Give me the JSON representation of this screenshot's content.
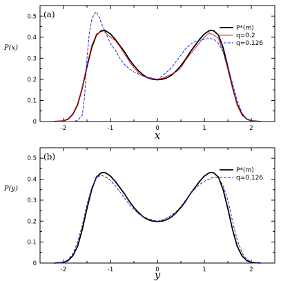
{
  "chart_data": [
    {
      "type": "line",
      "panel_label": "(a)",
      "xlabel": "x",
      "ylabel": "P(x)",
      "xlim": [
        -2.5,
        2.5
      ],
      "ylim": [
        0,
        0.55
      ],
      "x_ticks": [
        -2,
        -1,
        0,
        1,
        2
      ],
      "y_ticks": [
        0,
        0.1,
        0.2,
        0.3,
        0.4,
        0.5
      ],
      "x_tick_labels": [
        "-2",
        "-1",
        "0",
        "1",
        "2"
      ],
      "y_tick_labels": [
        "0",
        "0.1",
        "0.2",
        "0.3",
        "0.4",
        "0.5"
      ],
      "legend_position": "top-right",
      "series": [
        {
          "name": "P*(m)",
          "color": "#000000",
          "style": "solid",
          "x": [
            -2.2,
            -2.0,
            -1.9,
            -1.8,
            -1.7,
            -1.6,
            -1.5,
            -1.4,
            -1.3,
            -1.2,
            -1.15,
            -1.1,
            -1.0,
            -0.9,
            -0.8,
            -0.7,
            -0.6,
            -0.5,
            -0.4,
            -0.3,
            -0.2,
            -0.1,
            0.0,
            0.1,
            0.2,
            0.3,
            0.4,
            0.5,
            0.6,
            0.7,
            0.8,
            0.9,
            1.0,
            1.1,
            1.15,
            1.2,
            1.3,
            1.4,
            1.5,
            1.6,
            1.7,
            1.8,
            1.9,
            2.0,
            2.2
          ],
          "y": [
            0.0,
            0.003,
            0.012,
            0.035,
            0.08,
            0.16,
            0.26,
            0.35,
            0.41,
            0.43,
            0.432,
            0.43,
            0.415,
            0.39,
            0.36,
            0.33,
            0.295,
            0.265,
            0.24,
            0.22,
            0.207,
            0.2,
            0.198,
            0.2,
            0.207,
            0.22,
            0.24,
            0.265,
            0.295,
            0.33,
            0.36,
            0.39,
            0.415,
            0.43,
            0.432,
            0.43,
            0.41,
            0.35,
            0.26,
            0.16,
            0.08,
            0.035,
            0.012,
            0.003,
            0.0
          ]
        },
        {
          "name": "q=0.2",
          "color": "#e8231c",
          "style": "solid",
          "x": [
            -2.2,
            -2.0,
            -1.9,
            -1.8,
            -1.7,
            -1.6,
            -1.5,
            -1.4,
            -1.3,
            -1.2,
            -1.15,
            -1.1,
            -1.0,
            -0.9,
            -0.8,
            -0.7,
            -0.6,
            -0.5,
            -0.4,
            -0.3,
            -0.2,
            -0.1,
            0.0,
            0.1,
            0.2,
            0.3,
            0.4,
            0.5,
            0.6,
            0.7,
            0.8,
            0.9,
            1.0,
            1.1,
            1.15,
            1.2,
            1.3,
            1.4,
            1.5,
            1.6,
            1.7,
            1.8,
            1.9,
            2.0,
            2.2
          ],
          "y": [
            0.0,
            0.004,
            0.014,
            0.038,
            0.085,
            0.165,
            0.27,
            0.36,
            0.415,
            0.425,
            0.43,
            0.42,
            0.4,
            0.385,
            0.355,
            0.32,
            0.285,
            0.255,
            0.23,
            0.215,
            0.21,
            0.205,
            0.2,
            0.205,
            0.215,
            0.225,
            0.235,
            0.255,
            0.29,
            0.32,
            0.345,
            0.375,
            0.4,
            0.42,
            0.415,
            0.41,
            0.395,
            0.33,
            0.245,
            0.155,
            0.075,
            0.03,
            0.011,
            0.003,
            0.0
          ]
        },
        {
          "name": "q=0.126",
          "color": "#1a2bd6",
          "style": "dashed",
          "x": [
            -2.2,
            -1.8,
            -1.7,
            -1.6,
            -1.55,
            -1.5,
            -1.45,
            -1.4,
            -1.35,
            -1.3,
            -1.25,
            -1.2,
            -1.1,
            -1.0,
            -0.9,
            -0.8,
            -0.7,
            -0.6,
            -0.5,
            -0.4,
            -0.3,
            -0.2,
            -0.1,
            0.0,
            0.1,
            0.2,
            0.3,
            0.4,
            0.5,
            0.6,
            0.7,
            0.8,
            0.9,
            1.0,
            1.1,
            1.2,
            1.3,
            1.4,
            1.5,
            1.6,
            1.7,
            1.8,
            1.9,
            2.0,
            2.2
          ],
          "y": [
            0.0,
            0.0,
            0.005,
            0.03,
            0.12,
            0.3,
            0.42,
            0.48,
            0.51,
            0.52,
            0.5,
            0.47,
            0.42,
            0.37,
            0.34,
            0.3,
            0.27,
            0.25,
            0.235,
            0.225,
            0.215,
            0.205,
            0.2,
            0.2,
            0.215,
            0.235,
            0.255,
            0.285,
            0.315,
            0.345,
            0.365,
            0.38,
            0.385,
            0.39,
            0.395,
            0.39,
            0.37,
            0.33,
            0.26,
            0.18,
            0.1,
            0.04,
            0.012,
            0.003,
            0.0
          ]
        }
      ]
    },
    {
      "type": "line",
      "panel_label": "(b)",
      "xlabel": "y",
      "ylabel": "P(y)",
      "xlim": [
        -2.5,
        2.5
      ],
      "ylim": [
        0,
        0.55
      ],
      "x_ticks": [
        -2,
        -1,
        0,
        1,
        2
      ],
      "y_ticks": [
        0,
        0.1,
        0.2,
        0.3,
        0.4,
        0.5
      ],
      "x_tick_labels": [
        "-2",
        "-1",
        "0",
        "1",
        "2"
      ],
      "y_tick_labels": [
        "0",
        "0.1",
        "0.2",
        "0.3",
        "0.4",
        "0.5"
      ],
      "legend_position": "top-right",
      "series": [
        {
          "name": "P*(m)",
          "color": "#000000",
          "style": "solid",
          "x": [
            -2.2,
            -2.0,
            -1.9,
            -1.8,
            -1.7,
            -1.6,
            -1.5,
            -1.4,
            -1.3,
            -1.2,
            -1.15,
            -1.1,
            -1.0,
            -0.9,
            -0.8,
            -0.7,
            -0.6,
            -0.5,
            -0.4,
            -0.3,
            -0.2,
            -0.1,
            0.0,
            0.1,
            0.2,
            0.3,
            0.4,
            0.5,
            0.6,
            0.7,
            0.8,
            0.9,
            1.0,
            1.1,
            1.15,
            1.2,
            1.3,
            1.4,
            1.5,
            1.6,
            1.7,
            1.8,
            1.9,
            2.0,
            2.2
          ],
          "y": [
            0.0,
            0.003,
            0.012,
            0.035,
            0.08,
            0.16,
            0.26,
            0.35,
            0.41,
            0.43,
            0.432,
            0.43,
            0.415,
            0.39,
            0.36,
            0.33,
            0.295,
            0.265,
            0.24,
            0.22,
            0.207,
            0.2,
            0.198,
            0.2,
            0.207,
            0.22,
            0.24,
            0.265,
            0.295,
            0.33,
            0.36,
            0.39,
            0.415,
            0.43,
            0.432,
            0.43,
            0.41,
            0.35,
            0.26,
            0.16,
            0.08,
            0.035,
            0.012,
            0.003,
            0.0
          ]
        },
        {
          "name": "q=0.126",
          "color": "#1a2bd6",
          "style": "dashed",
          "x": [
            -2.2,
            -2.0,
            -1.9,
            -1.8,
            -1.7,
            -1.6,
            -1.5,
            -1.4,
            -1.3,
            -1.2,
            -1.1,
            -1.0,
            -0.9,
            -0.8,
            -0.7,
            -0.6,
            -0.5,
            -0.4,
            -0.3,
            -0.2,
            -0.1,
            0.0,
            0.1,
            0.2,
            0.3,
            0.4,
            0.5,
            0.6,
            0.7,
            0.8,
            0.9,
            1.0,
            1.1,
            1.2,
            1.3,
            1.4,
            1.5,
            1.6,
            1.7,
            1.8,
            1.9,
            2.0,
            2.2
          ],
          "y": [
            0.0,
            0.004,
            0.016,
            0.045,
            0.1,
            0.18,
            0.28,
            0.36,
            0.405,
            0.42,
            0.41,
            0.395,
            0.37,
            0.34,
            0.31,
            0.28,
            0.255,
            0.235,
            0.222,
            0.212,
            0.205,
            0.2,
            0.205,
            0.215,
            0.228,
            0.245,
            0.27,
            0.3,
            0.33,
            0.355,
            0.375,
            0.39,
            0.4,
            0.41,
            0.405,
            0.37,
            0.3,
            0.2,
            0.11,
            0.05,
            0.018,
            0.005,
            0.0
          ]
        }
      ]
    }
  ]
}
